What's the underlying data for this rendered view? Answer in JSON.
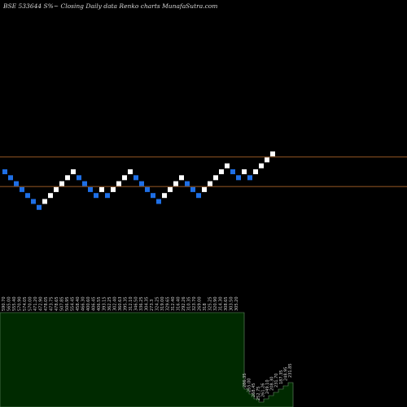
{
  "header": {
    "title": "BSE 533644  S%~  Closing Daily data  Renko  charts MunafaSutra.com"
  },
  "colors": {
    "background": "#000000",
    "brick_up": "#ffffff",
    "brick_down": "#1e6fe6",
    "reference_line": "#c8752f",
    "volume_fill": "#002a00",
    "volume_edge": "#6b8f6b",
    "label_text": "#d0d0d0"
  },
  "chart_data": {
    "type": "renko",
    "title": "BSE 533644 S%~ Closing Daily data Renko charts MunafaSutra.com",
    "bricks": [
      {
        "dir": "down",
        "level": 0
      },
      {
        "dir": "down",
        "level": -1
      },
      {
        "dir": "down",
        "level": -2
      },
      {
        "dir": "down",
        "level": -3
      },
      {
        "dir": "down",
        "level": -4
      },
      {
        "dir": "down",
        "level": -5
      },
      {
        "dir": "down",
        "level": -6
      },
      {
        "dir": "up",
        "level": -5
      },
      {
        "dir": "up",
        "level": -4
      },
      {
        "dir": "up",
        "level": -3
      },
      {
        "dir": "up",
        "level": -2
      },
      {
        "dir": "up",
        "level": -1
      },
      {
        "dir": "up",
        "level": 0
      },
      {
        "dir": "down",
        "level": -1
      },
      {
        "dir": "down",
        "level": -2
      },
      {
        "dir": "down",
        "level": -3
      },
      {
        "dir": "down",
        "level": -4
      },
      {
        "dir": "up",
        "level": -3
      },
      {
        "dir": "down",
        "level": -4
      },
      {
        "dir": "up",
        "level": -3
      },
      {
        "dir": "up",
        "level": -2
      },
      {
        "dir": "up",
        "level": -1
      },
      {
        "dir": "up",
        "level": 0
      },
      {
        "dir": "down",
        "level": -1
      },
      {
        "dir": "down",
        "level": -2
      },
      {
        "dir": "down",
        "level": -3
      },
      {
        "dir": "down",
        "level": -4
      },
      {
        "dir": "down",
        "level": -5
      },
      {
        "dir": "up",
        "level": -4
      },
      {
        "dir": "up",
        "level": -3
      },
      {
        "dir": "up",
        "level": -2
      },
      {
        "dir": "up",
        "level": -1
      },
      {
        "dir": "down",
        "level": -2
      },
      {
        "dir": "down",
        "level": -3
      },
      {
        "dir": "down",
        "level": -4
      },
      {
        "dir": "up",
        "level": -3
      },
      {
        "dir": "up",
        "level": -2
      },
      {
        "dir": "up",
        "level": -1
      },
      {
        "dir": "up",
        "level": 0
      },
      {
        "dir": "up",
        "level": 1
      },
      {
        "dir": "down",
        "level": 0
      },
      {
        "dir": "down",
        "level": -1
      },
      {
        "dir": "up",
        "level": 0
      },
      {
        "dir": "down",
        "level": -1
      },
      {
        "dir": "up",
        "level": 0
      },
      {
        "dir": "up",
        "level": 1
      },
      {
        "dir": "up",
        "level": 2
      },
      {
        "dir": "up",
        "level": 3
      }
    ],
    "reference_levels": [
      2,
      -2
    ],
    "price_labels_top": [
      "590.70",
      "565.00",
      "555.40",
      "570.90",
      "574.05",
      "570.00",
      "471.20",
      "472.90",
      "478.05",
      "473.75",
      "478.65",
      "507.85",
      "506.95",
      "554.45",
      "458.40",
      "466.30",
      "400.60",
      "406.45",
      "406.55",
      "393.15",
      "362.25",
      "302.40",
      "360.63",
      "395.35",
      "312.10",
      "346.50",
      "336.25",
      "304.35",
      "273.3",
      "324.25",
      "319.00",
      "329.65",
      "312.40",
      "316.40",
      "292.26",
      "310.35",
      "323.70",
      "269.00",
      "318",
      "325.25",
      "320.90",
      "314.30",
      "308.65",
      "303.50",
      "305.20"
    ],
    "price_labels_bottom": [
      "286.35",
      "255.00",
      "268.45",
      "252.75",
      "261.26",
      "249.10",
      "208.30",
      "231.70",
      "187.35",
      "248.95",
      "231.85"
    ]
  }
}
